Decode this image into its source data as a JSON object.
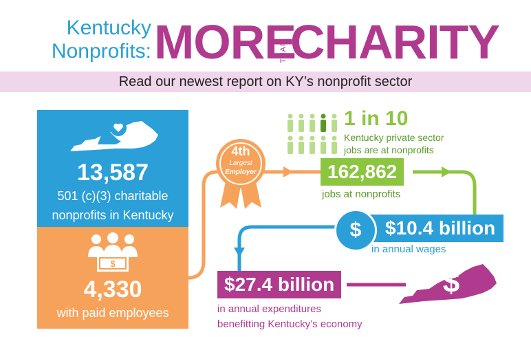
{
  "header": {
    "line1": "Kentucky",
    "line2": "Nonprofits:",
    "word_more": "MORE",
    "word_than": "THAN",
    "word_charity": "CHARITY"
  },
  "banner": {
    "text": "Read our newest report on KY’s nonprofit sector"
  },
  "left_panel": {
    "charitable_count": "13,587",
    "charitable_line1": "501 (c)(3) charitable",
    "charitable_line2": "nonprofits in Kentucky",
    "employees_count": "4,330",
    "employees_label": "with paid employees"
  },
  "ribbon": {
    "rank": "4th",
    "line1": "Largest",
    "line2": "Employer"
  },
  "ratio": {
    "headline": "1 in 10",
    "line1": "Kentucky private sector",
    "line2": "jobs are at nonprofits",
    "highlighted_people": 1,
    "total_people": 10
  },
  "jobs": {
    "value": "162,862",
    "caption": "jobs at nonprofits"
  },
  "wages": {
    "symbol": "$",
    "value": "$10.4 billion",
    "caption": "in annual wages"
  },
  "expenditures": {
    "value": "$27.4 billion",
    "line1": "in annual expenditures",
    "line2": "benefitting Kentucky’s economy"
  },
  "map_symbol": "$",
  "colors": {
    "blue": "#2a9fd8",
    "purple": "#b03a8e",
    "green": "#8cc540",
    "orange": "#f7a25a",
    "pink_banner": "#f0d6ea"
  },
  "icons": [
    "kentucky-map-icon",
    "hand-heart-icon",
    "people-icon",
    "money-icon",
    "person-icon",
    "award-ribbon-icon",
    "kentucky-dollar-map-icon"
  ]
}
